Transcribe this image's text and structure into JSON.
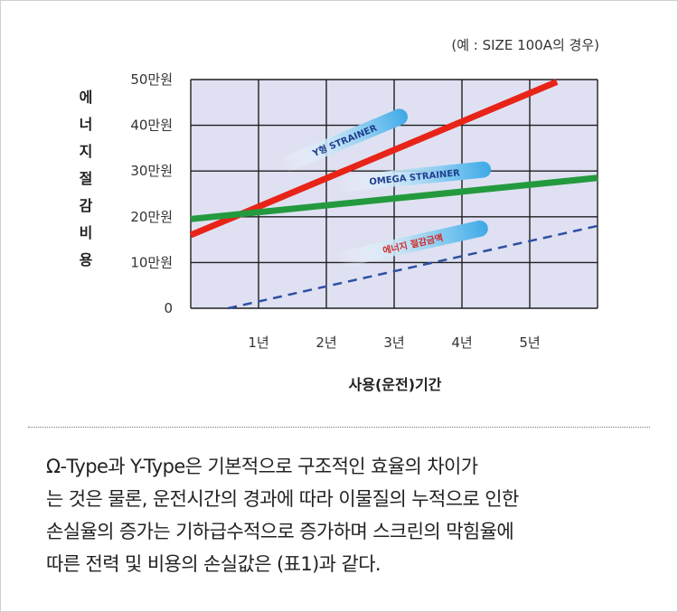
{
  "chart_data": {
    "type": "line",
    "note": "(예 : SIZE 100A의 경우)",
    "ylabel": "에너지절감비용",
    "xlabel": "사용(운전)기간",
    "y_ticks": [
      "0",
      "10만원",
      "20만원",
      "30만원",
      "40만원",
      "50만원"
    ],
    "x_ticks": [
      "1년",
      "2년",
      "3년",
      "4년",
      "5년"
    ],
    "xlim": [
      0,
      6
    ],
    "ylim": [
      0,
      50
    ],
    "grid": true,
    "background": "#dfe1f2",
    "series": [
      {
        "name": "Y형 STRAINER",
        "color": "#e82418",
        "style": "solid",
        "x": [
          0,
          5.4
        ],
        "y": [
          16,
          49.5
        ]
      },
      {
        "name": "OMEGA STRAINER",
        "color": "#249a3e",
        "style": "solid",
        "x": [
          0,
          6
        ],
        "y": [
          19.5,
          28.5
        ]
      },
      {
        "name": "에너지 절감금액",
        "color": "#2e4fa3",
        "style": "dashed",
        "x": [
          0.55,
          6
        ],
        "y": [
          0,
          18
        ]
      }
    ],
    "labels": [
      {
        "series": 0,
        "text": "Y형 STRAINER"
      },
      {
        "series": 1,
        "text": "OMEGA STRAINER"
      },
      {
        "series": 2,
        "text": "에너지 절감금액"
      }
    ]
  },
  "description": {
    "lines": [
      "Ω-Type과 Y-Type은 기본적으로 구조적인 효율의 차이가",
      "는 것은 물론, 운전시간의 경과에 따라 이물질의 누적으로 인한",
      "손실율의 증가는 기하급수적으로 증가하며 스크린의 막힘율에",
      "따른 전력 및 비용의 손실값은 (표1)과 같다."
    ]
  }
}
